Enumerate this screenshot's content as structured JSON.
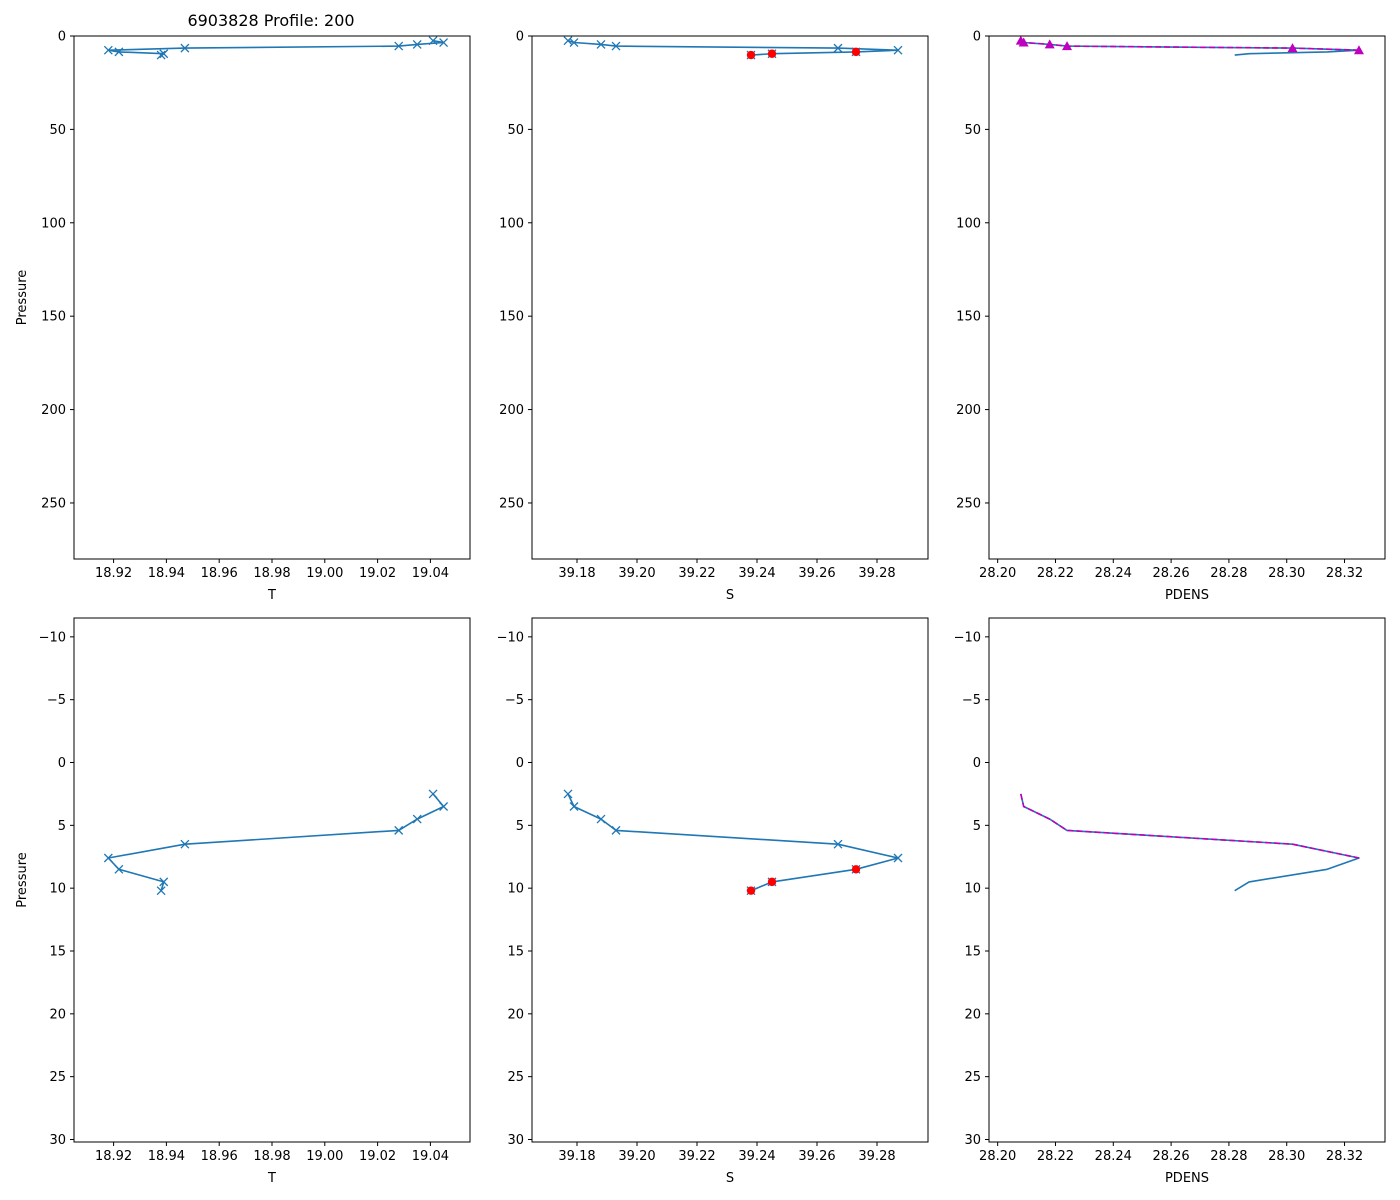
{
  "title": "6903828 Profile: 200",
  "colors": {
    "line": "#1f77b4",
    "flag": "#ff0000",
    "ref": "#bf00bf",
    "axis": "#000000"
  },
  "chart_data": [
    {
      "id": "t-full",
      "type": "line",
      "xlabel": "T",
      "ylabel": "Pressure",
      "xlim": [
        18.905,
        19.055
      ],
      "ylim": [
        280,
        0
      ],
      "inverted_y": true,
      "xticks": [
        18.92,
        18.94,
        18.96,
        18.98,
        19.0,
        19.02,
        19.04
      ],
      "xtick_labels": [
        "18.92",
        "18.94",
        "18.96",
        "18.98",
        "19.00",
        "19.02",
        "19.04"
      ],
      "yticks": [
        0,
        50,
        100,
        150,
        200,
        250
      ],
      "ytick_labels": [
        "0",
        "50",
        "100",
        "150",
        "200",
        "250"
      ],
      "series": [
        {
          "name": "T",
          "style": "line-x",
          "x": [
            19.041,
            19.045,
            19.035,
            19.028,
            18.947,
            18.918,
            18.922,
            18.939,
            18.938
          ],
          "y": [
            2.5,
            3.5,
            4.5,
            5.4,
            6.5,
            7.6,
            8.5,
            9.5,
            10.2
          ]
        }
      ]
    },
    {
      "id": "s-full",
      "type": "line",
      "xlabel": "S",
      "ylabel": "",
      "xlim": [
        39.165,
        39.297
      ],
      "ylim": [
        280,
        0
      ],
      "inverted_y": true,
      "xticks": [
        39.18,
        39.2,
        39.22,
        39.24,
        39.26,
        39.28
      ],
      "xtick_labels": [
        "39.18",
        "39.20",
        "39.22",
        "39.24",
        "39.26",
        "39.28"
      ],
      "yticks": [
        0,
        50,
        100,
        150,
        200,
        250
      ],
      "ytick_labels": [
        "0",
        "50",
        "100",
        "150",
        "200",
        "250"
      ],
      "series": [
        {
          "name": "S",
          "style": "line-x",
          "x": [
            39.177,
            39.179,
            39.188,
            39.193,
            39.267,
            39.287,
            39.273,
            39.245,
            39.238
          ],
          "y": [
            2.5,
            3.5,
            4.5,
            5.4,
            6.5,
            7.6,
            8.5,
            9.5,
            10.2
          ]
        },
        {
          "name": "flagged",
          "style": "red-dot",
          "x": [
            39.273,
            39.245,
            39.238
          ],
          "y": [
            8.5,
            9.5,
            10.2
          ]
        }
      ]
    },
    {
      "id": "pdens-full",
      "type": "line",
      "xlabel": "PDENS",
      "ylabel": "",
      "xlim": [
        28.197,
        28.334
      ],
      "ylim": [
        280,
        0
      ],
      "inverted_y": true,
      "xticks": [
        28.2,
        28.22,
        28.24,
        28.26,
        28.28,
        28.3,
        28.32
      ],
      "xtick_labels": [
        "28.20",
        "28.22",
        "28.24",
        "28.26",
        "28.28",
        "28.30",
        "28.32"
      ],
      "yticks": [
        0,
        50,
        100,
        150,
        200,
        250
      ],
      "ytick_labels": [
        "0",
        "50",
        "100",
        "150",
        "200",
        "250"
      ],
      "series": [
        {
          "name": "PDENS",
          "style": "line",
          "x": [
            28.208,
            28.209,
            28.218,
            28.224,
            28.302,
            28.325,
            28.314,
            28.287,
            28.282
          ],
          "y": [
            2.5,
            3.5,
            4.5,
            5.4,
            6.5,
            7.6,
            8.5,
            9.5,
            10.2
          ]
        },
        {
          "name": "reference",
          "style": "magenta-dash-triangle",
          "x": [
            28.208,
            28.209,
            28.218,
            28.224,
            28.302,
            28.325
          ],
          "y": [
            2.5,
            3.5,
            4.5,
            5.4,
            6.5,
            7.6
          ]
        }
      ]
    },
    {
      "id": "t-zoom",
      "type": "line",
      "xlabel": "T",
      "ylabel": "Pressure",
      "xlim": [
        18.905,
        19.055
      ],
      "ylim": [
        30.2,
        -11.5
      ],
      "inverted_y": true,
      "xticks": [
        18.92,
        18.94,
        18.96,
        18.98,
        19.0,
        19.02,
        19.04
      ],
      "xtick_labels": [
        "18.92",
        "18.94",
        "18.96",
        "18.98",
        "19.00",
        "19.02",
        "19.04"
      ],
      "yticks": [
        -10,
        -5,
        0,
        5,
        10,
        15,
        20,
        25,
        30
      ],
      "ytick_labels": [
        "−10",
        "−5",
        "0",
        "5",
        "10",
        "15",
        "20",
        "25",
        "30"
      ],
      "series": [
        {
          "name": "T",
          "style": "line-x",
          "x": [
            19.041,
            19.045,
            19.035,
            19.028,
            18.947,
            18.918,
            18.922,
            18.939,
            18.938
          ],
          "y": [
            2.5,
            3.5,
            4.5,
            5.4,
            6.5,
            7.6,
            8.5,
            9.5,
            10.2
          ]
        }
      ]
    },
    {
      "id": "s-zoom",
      "type": "line",
      "xlabel": "S",
      "ylabel": "",
      "xlim": [
        39.165,
        39.297
      ],
      "ylim": [
        30.2,
        -11.5
      ],
      "inverted_y": true,
      "xticks": [
        39.18,
        39.2,
        39.22,
        39.24,
        39.26,
        39.28
      ],
      "xtick_labels": [
        "39.18",
        "39.20",
        "39.22",
        "39.24",
        "39.26",
        "39.28"
      ],
      "yticks": [
        -10,
        -5,
        0,
        5,
        10,
        15,
        20,
        25,
        30
      ],
      "ytick_labels": [
        "−10",
        "−5",
        "0",
        "5",
        "10",
        "15",
        "20",
        "25",
        "30"
      ],
      "series": [
        {
          "name": "S",
          "style": "line-x",
          "x": [
            39.177,
            39.179,
            39.188,
            39.193,
            39.267,
            39.287,
            39.273,
            39.245,
            39.238
          ],
          "y": [
            2.5,
            3.5,
            4.5,
            5.4,
            6.5,
            7.6,
            8.5,
            9.5,
            10.2
          ]
        },
        {
          "name": "flagged",
          "style": "red-dot",
          "x": [
            39.273,
            39.245,
            39.238
          ],
          "y": [
            8.5,
            9.5,
            10.2
          ]
        }
      ]
    },
    {
      "id": "pdens-zoom",
      "type": "line",
      "xlabel": "PDENS",
      "ylabel": "",
      "xlim": [
        28.197,
        28.334
      ],
      "ylim": [
        30.2,
        -11.5
      ],
      "inverted_y": true,
      "xticks": [
        28.2,
        28.22,
        28.24,
        28.26,
        28.28,
        28.3,
        28.32
      ],
      "xtick_labels": [
        "28.20",
        "28.22",
        "28.24",
        "28.26",
        "28.28",
        "28.30",
        "28.32"
      ],
      "yticks": [
        -10,
        -5,
        0,
        5,
        10,
        15,
        20,
        25,
        30
      ],
      "ytick_labels": [
        "−10",
        "−5",
        "0",
        "5",
        "10",
        "15",
        "20",
        "25",
        "30"
      ],
      "series": [
        {
          "name": "PDENS",
          "style": "line",
          "x": [
            28.208,
            28.209,
            28.218,
            28.224,
            28.302,
            28.325,
            28.314,
            28.287,
            28.282
          ],
          "y": [
            2.5,
            3.5,
            4.5,
            5.4,
            6.5,
            7.6,
            8.5,
            9.5,
            10.2
          ]
        },
        {
          "name": "reference",
          "style": "magenta-dash",
          "x": [
            28.208,
            28.209,
            28.218,
            28.224,
            28.302,
            28.325
          ],
          "y": [
            2.5,
            3.5,
            4.5,
            5.4,
            6.5,
            7.6
          ]
        }
      ]
    }
  ]
}
